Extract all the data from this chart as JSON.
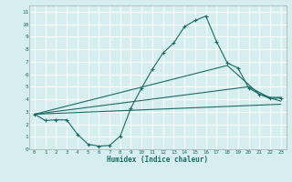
{
  "xlabel": "Humidex (Indice chaleur)",
  "bg_color": "#d6eef0",
  "grid_color": "#ffffff",
  "line_color": "#1a6b62",
  "xlim": [
    -0.5,
    23.5
  ],
  "ylim": [
    0,
    11.5
  ],
  "xticks": [
    0,
    1,
    2,
    3,
    4,
    5,
    6,
    7,
    8,
    9,
    10,
    11,
    12,
    13,
    14,
    15,
    16,
    17,
    18,
    19,
    20,
    21,
    22,
    23
  ],
  "yticks": [
    0,
    1,
    2,
    3,
    4,
    5,
    6,
    7,
    8,
    9,
    10,
    11
  ],
  "curve1_x": [
    0,
    1,
    2,
    3,
    4,
    5,
    6,
    7,
    8,
    9,
    10,
    11,
    12,
    13,
    14,
    15,
    16,
    17,
    18,
    19,
    20,
    21,
    22,
    23
  ],
  "curve1_y": [
    2.8,
    2.3,
    2.35,
    2.35,
    1.2,
    0.4,
    0.25,
    0.3,
    1.05,
    3.3,
    4.9,
    6.4,
    7.7,
    8.5,
    9.8,
    10.3,
    10.65,
    8.6,
    6.9,
    6.5,
    4.9,
    4.4,
    4.05,
    4.1
  ],
  "curve2_x": [
    0,
    18,
    21,
    22,
    23
  ],
  "curve2_y": [
    2.8,
    6.7,
    4.4,
    4.15,
    4.15
  ],
  "curve3_x": [
    0,
    20,
    21,
    22,
    23
  ],
  "curve3_y": [
    2.8,
    5.0,
    4.55,
    4.1,
    3.85
  ],
  "curve4_x": [
    0,
    23
  ],
  "curve4_y": [
    2.8,
    3.6
  ]
}
